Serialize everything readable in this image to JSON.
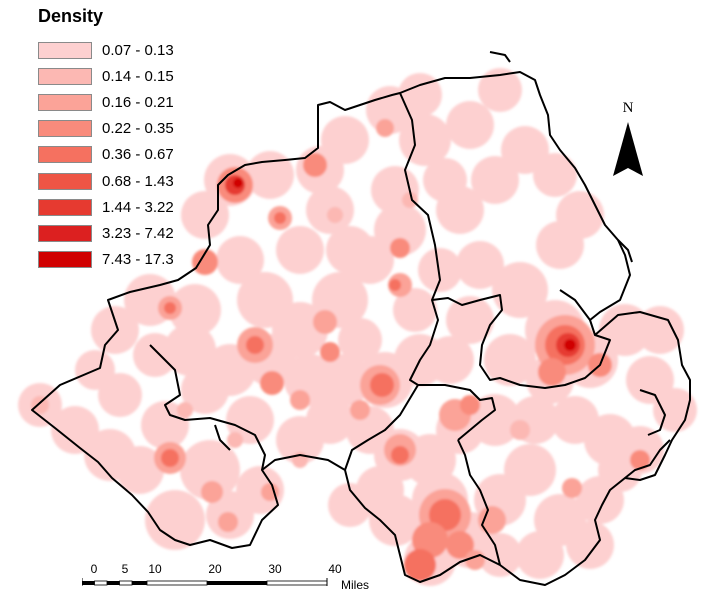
{
  "legend": {
    "title": "Density",
    "classes": [
      {
        "label": "0.07 - 0.13",
        "color": "#fdd0d0"
      },
      {
        "label": "0.14 - 0.15",
        "color": "#fcb8b3"
      },
      {
        "label": "0.16 - 0.21",
        "color": "#fba398"
      },
      {
        "label": "0.22 - 0.35",
        "color": "#f98b7c"
      },
      {
        "label": "0.36 - 0.67",
        "color": "#f57160"
      },
      {
        "label": "0.68 - 1.43",
        "color": "#ee5545"
      },
      {
        "label": "1.44 - 3.22",
        "color": "#e63a30"
      },
      {
        "label": "3.23 - 7.42",
        "color": "#dc2020"
      },
      {
        "label": "7.43 - 17.3",
        "color": "#d00000"
      }
    ]
  },
  "north_arrow": {
    "label": "N"
  },
  "scale_bar": {
    "ticks": [
      "0",
      "5",
      "10",
      "20",
      "30",
      "40"
    ],
    "unit": "Miles"
  }
}
